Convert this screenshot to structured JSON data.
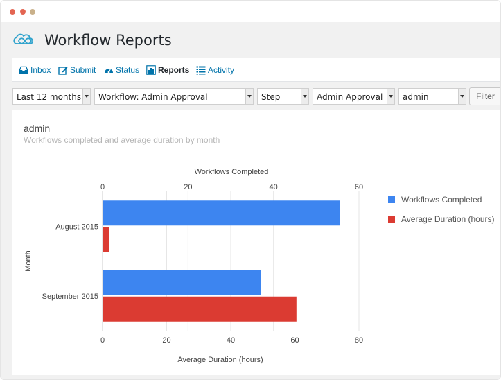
{
  "window": {
    "controls": [
      "close",
      "minimize",
      "maximize"
    ],
    "control_colors": [
      "#e36552",
      "#e36552",
      "#e36552"
    ]
  },
  "header": {
    "title": "Workflow Reports",
    "logo": "infinity-cloud-logo"
  },
  "nav": {
    "items": [
      {
        "label": "Inbox",
        "icon": "inbox-icon"
      },
      {
        "label": "Submit",
        "icon": "edit-icon"
      },
      {
        "label": "Status",
        "icon": "dashboard-icon"
      },
      {
        "label": "Reports",
        "icon": "bar-chart-icon",
        "active": true
      },
      {
        "label": "Activity",
        "icon": "list-icon"
      }
    ]
  },
  "filters": {
    "period": "Last 12 months",
    "workflow": "Workflow: Admin Approval",
    "step_type": "Step",
    "step": "Admin Approval",
    "user": "admin",
    "filter_label": "Filter"
  },
  "panel": {
    "title": "admin",
    "subtitle": "Workflows completed and average duration by month"
  },
  "colors": {
    "accent": "#0073aa",
    "series_completed": "#3d85f0",
    "series_duration": "#db3b32"
  },
  "chart_data": {
    "type": "bar",
    "orientation": "horizontal",
    "categories": [
      "August 2015",
      "September 2015"
    ],
    "series": [
      {
        "name": "Workflows Completed",
        "values": [
          55.5,
          37
        ],
        "axis": "top",
        "color": "#3d85f0"
      },
      {
        "name": "Average Duration (hours)",
        "values": [
          2,
          60.5
        ],
        "axis": "bottom",
        "color": "#db3b32"
      }
    ],
    "top_axis": {
      "label": "Workflows Completed",
      "range": [
        0,
        60
      ],
      "ticks": [
        0,
        20,
        40,
        60
      ]
    },
    "bottom_axis": {
      "label": "Average Duration (hours)",
      "range": [
        0,
        80
      ],
      "ticks": [
        0,
        20,
        40,
        60,
        80
      ]
    },
    "ylabel": "Month",
    "legend_position": "right",
    "grid": true
  }
}
